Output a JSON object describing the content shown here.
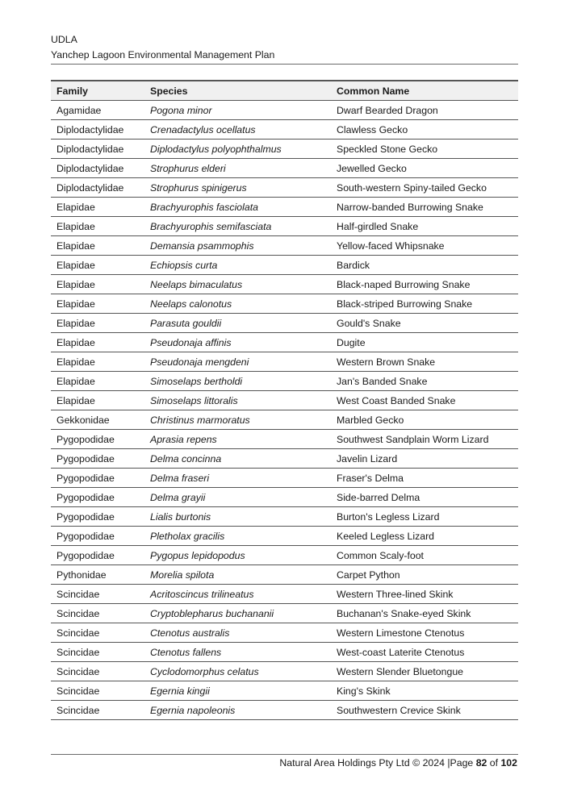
{
  "header": {
    "org": "UDLA",
    "title": "Yanchep Lagoon Environmental Management Plan"
  },
  "table": {
    "columns": [
      "Family",
      "Species",
      "Common Name"
    ],
    "rows": [
      [
        "Agamidae",
        "Pogona minor",
        "Dwarf Bearded Dragon"
      ],
      [
        "Diplodactylidae",
        "Crenadactylus ocellatus",
        "Clawless Gecko"
      ],
      [
        "Diplodactylidae",
        "Diplodactylus polyophthalmus",
        "Speckled Stone Gecko"
      ],
      [
        "Diplodactylidae",
        "Strophurus elderi",
        "Jewelled Gecko"
      ],
      [
        "Diplodactylidae",
        "Strophurus spinigerus",
        "South-western Spiny-tailed Gecko"
      ],
      [
        "Elapidae",
        "Brachyurophis fasciolata",
        "Narrow-banded Burrowing Snake"
      ],
      [
        "Elapidae",
        "Brachyurophis semifasciata",
        "Half-girdled Snake"
      ],
      [
        "Elapidae",
        "Demansia psammophis",
        "Yellow-faced Whipsnake"
      ],
      [
        "Elapidae",
        "Echiopsis curta",
        "Bardick"
      ],
      [
        "Elapidae",
        "Neelaps bimaculatus",
        "Black-naped Burrowing Snake"
      ],
      [
        "Elapidae",
        "Neelaps calonotus",
        "Black-striped Burrowing Snake"
      ],
      [
        "Elapidae",
        "Parasuta gouldii",
        "Gould's Snake"
      ],
      [
        "Elapidae",
        "Pseudonaja affinis",
        "Dugite"
      ],
      [
        "Elapidae",
        "Pseudonaja mengdeni",
        "Western Brown Snake"
      ],
      [
        "Elapidae",
        "Simoselaps bertholdi",
        "Jan's Banded Snake"
      ],
      [
        "Elapidae",
        "Simoselaps littoralis",
        "West Coast Banded Snake"
      ],
      [
        "Gekkonidae",
        "Christinus marmoratus",
        "Marbled Gecko"
      ],
      [
        "Pygopodidae",
        "Aprasia repens",
        "Southwest Sandplain Worm Lizard"
      ],
      [
        "Pygopodidae",
        "Delma concinna",
        "Javelin Lizard"
      ],
      [
        "Pygopodidae",
        "Delma fraseri",
        "Fraser's Delma"
      ],
      [
        "Pygopodidae",
        "Delma grayii",
        "Side-barred Delma"
      ],
      [
        "Pygopodidae",
        "Lialis burtonis",
        "Burton's Legless Lizard"
      ],
      [
        "Pygopodidae",
        "Pletholax gracilis",
        "Keeled Legless Lizard"
      ],
      [
        "Pygopodidae",
        "Pygopus lepidopodus",
        "Common Scaly-foot"
      ],
      [
        "Pythonidae",
        "Morelia spilota",
        "Carpet Python"
      ],
      [
        "Scincidae",
        "Acritoscincus trilineatus",
        "Western Three-lined Skink"
      ],
      [
        "Scincidae",
        "Cryptoblepharus buchananii",
        "Buchanan's Snake-eyed Skink"
      ],
      [
        "Scincidae",
        "Ctenotus australis",
        "Western Limestone Ctenotus"
      ],
      [
        "Scincidae",
        "Ctenotus fallens",
        "West-coast Laterite Ctenotus"
      ],
      [
        "Scincidae",
        "Cyclodomorphus celatus",
        "Western Slender Bluetongue"
      ],
      [
        "Scincidae",
        "Egernia kingii",
        "King's Skink"
      ],
      [
        "Scincidae",
        "Egernia napoleonis",
        "Southwestern Crevice Skink"
      ]
    ]
  },
  "footer": {
    "text": "Natural Area Holdings Pty Ltd © 2024 |Page ",
    "page": "82",
    "of": " of ",
    "total": "102"
  }
}
